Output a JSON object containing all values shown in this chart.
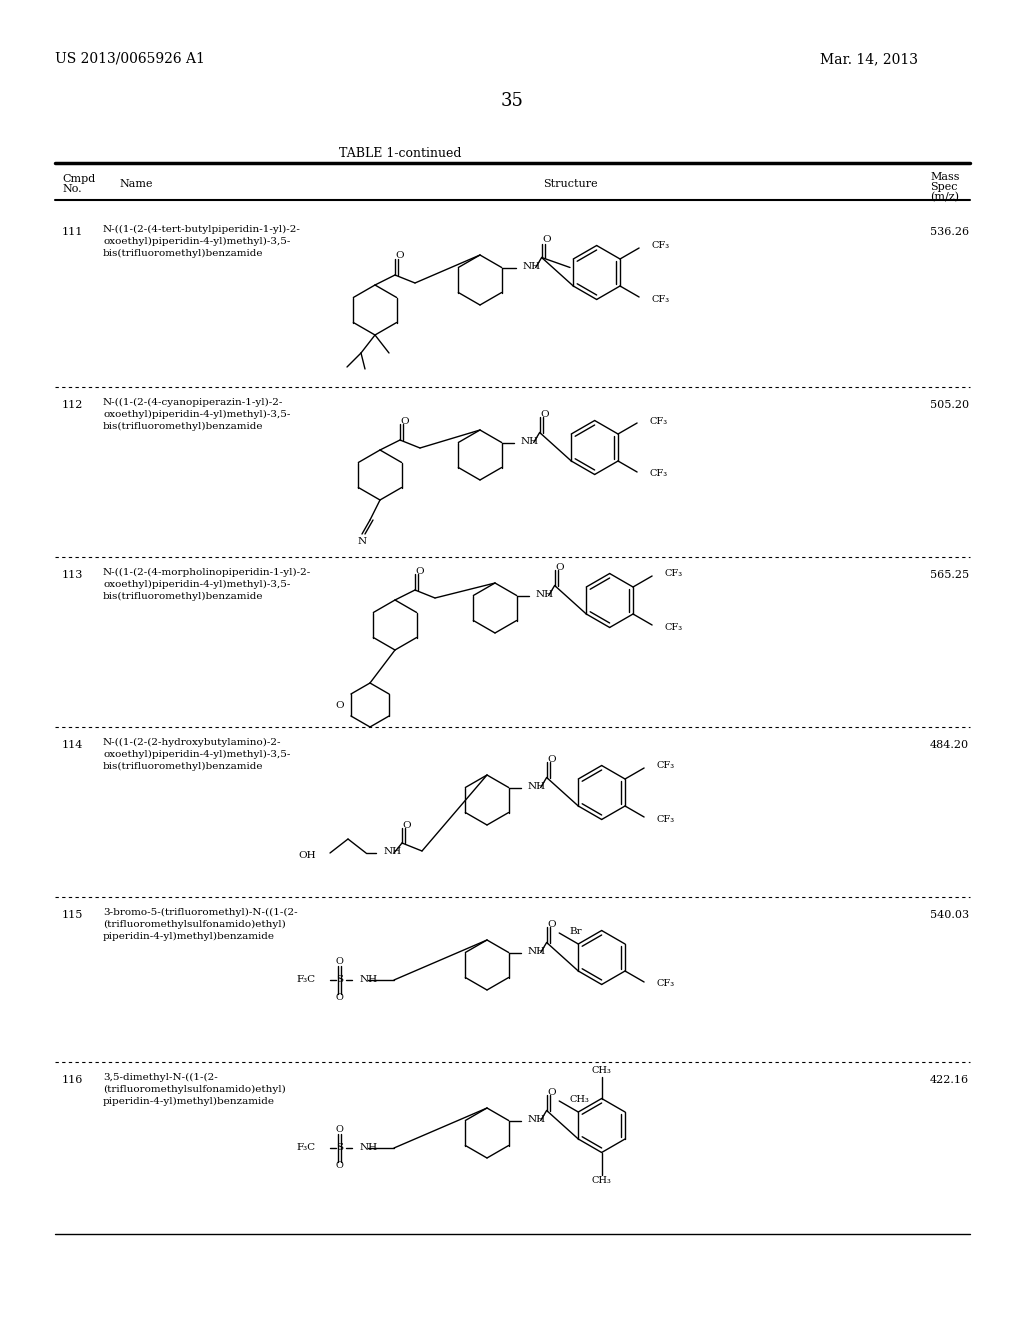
{
  "patent_number": "US 2013/0065926 A1",
  "date": "Mar. 14, 2013",
  "page_number": "35",
  "table_title": "TABLE 1-continued",
  "compounds": [
    {
      "number": "111",
      "name": "N-((1-(2-(4-tert-butylpiperidin-1-yl)-2-\noxoethyl)piperidin-4-yl)methyl)-3,5-\nbis(trifluoromethyl)benzamide",
      "mass_spec": "536.26"
    },
    {
      "number": "112",
      "name": "N-((1-(2-(4-cyanopiperazin-1-yl)-2-\noxoethyl)piperidin-4-yl)methyl)-3,5-\nbis(trifluoromethyl)benzamide",
      "mass_spec": "505.20"
    },
    {
      "number": "113",
      "name": "N-((1-(2-(4-morpholinopiperidin-1-yl)-2-\noxoethyl)piperidin-4-yl)methyl)-3,5-\nbis(trifluoromethyl)benzamide",
      "mass_spec": "565.25"
    },
    {
      "number": "114",
      "name": "N-((1-(2-(2-hydroxybutylamino)-2-\noxoethyl)piperidin-4-yl)methyl)-3,5-\nbis(trifluoromethyl)benzamide",
      "mass_spec": "484.20"
    },
    {
      "number": "115",
      "name": "3-bromo-5-(trifluoromethyl)-N-((1-(2-\n(trifluoromethylsulfonamido)ethyl)\npiperidin-4-yl)methyl)benzamide",
      "mass_spec": "540.03"
    },
    {
      "number": "116",
      "name": "3,5-dimethyl-N-((1-(2-\n(trifluoromethylsulfonamido)ethyl)\npiperidin-4-yl)methyl)benzamide",
      "mass_spec": "422.16"
    }
  ],
  "bg_color": "#ffffff",
  "row_tops_img": [
    215,
    388,
    558,
    728,
    898,
    1063
  ],
  "row_bots_img": [
    386,
    556,
    726,
    896,
    1061,
    1232
  ]
}
